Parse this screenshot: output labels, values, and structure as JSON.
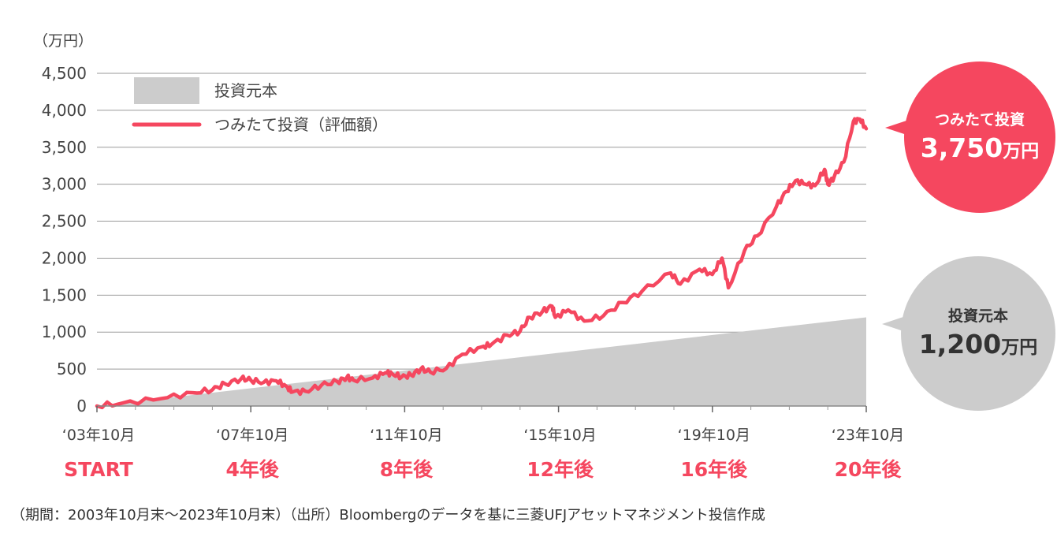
{
  "chart_data": {
    "type": "area",
    "y_unit": "（万円）",
    "ylim": [
      0,
      4500
    ],
    "y_ticks": [
      "4,500",
      "4,000",
      "3,500",
      "3,000",
      "2,500",
      "2,000",
      "1,500",
      "1,000",
      "500",
      "0"
    ],
    "x_ticks": [
      {
        "date": "‘03年10月",
        "elapsed": "START"
      },
      {
        "date": "‘07年10月",
        "elapsed": "4年後"
      },
      {
        "date": "‘11年10月",
        "elapsed": "8年後"
      },
      {
        "date": "‘15年10月",
        "elapsed": "12年後"
      },
      {
        "date": "‘19年10月",
        "elapsed": "16年後"
      },
      {
        "date": "‘23年10月",
        "elapsed": "20年後"
      }
    ],
    "grid": true,
    "legend": [
      {
        "label": "投資元本",
        "color": "#cccccc"
      },
      {
        "label": "つみたて投資（評価額）",
        "color": "#f5475f"
      }
    ],
    "legend_position": "top-left",
    "series": [
      {
        "name": "投資元本",
        "style": "area",
        "color": "#cccccc",
        "points": [
          [
            "2003-10",
            0
          ],
          [
            "2023-10",
            1200
          ]
        ]
      },
      {
        "name": "つみたて投資（評価額）",
        "style": "line",
        "color": "#f5475f",
        "points": [
          [
            "2003-10",
            0
          ],
          [
            "2004-06",
            40
          ],
          [
            "2005-06",
            100
          ],
          [
            "2006-04",
            180
          ],
          [
            "2006-10",
            220
          ],
          [
            "2007-02",
            300
          ],
          [
            "2007-07",
            370
          ],
          [
            "2007-10",
            350
          ],
          [
            "2008-02",
            320
          ],
          [
            "2008-06",
            340
          ],
          [
            "2008-09",
            270
          ],
          [
            "2008-11",
            190
          ],
          [
            "2009-03",
            200
          ],
          [
            "2009-08",
            280
          ],
          [
            "2010-01",
            330
          ],
          [
            "2010-04",
            390
          ],
          [
            "2010-06",
            350
          ],
          [
            "2010-12",
            380
          ],
          [
            "2011-04",
            450
          ],
          [
            "2011-06",
            440
          ],
          [
            "2011-09",
            390
          ],
          [
            "2011-12",
            420
          ],
          [
            "2012-03",
            500
          ],
          [
            "2012-06",
            460
          ],
          [
            "2012-11",
            510
          ],
          [
            "2013-04",
            700
          ],
          [
            "2013-10",
            800
          ],
          [
            "2014-01",
            830
          ],
          [
            "2014-06",
            960
          ],
          [
            "2014-10",
            1010
          ],
          [
            "2015-01",
            1200
          ],
          [
            "2015-05",
            1280
          ],
          [
            "2015-08",
            1350
          ],
          [
            "2015-09",
            1200
          ],
          [
            "2016-01",
            1300
          ],
          [
            "2016-06",
            1150
          ],
          [
            "2016-12",
            1220
          ],
          [
            "2017-06",
            1400
          ],
          [
            "2017-12",
            1550
          ],
          [
            "2018-09",
            1800
          ],
          [
            "2018-12",
            1650
          ],
          [
            "2019-06",
            1850
          ],
          [
            "2019-10",
            1780
          ],
          [
            "2020-01",
            2000
          ],
          [
            "2020-03",
            1600
          ],
          [
            "2020-08",
            2100
          ],
          [
            "2020-12",
            2300
          ],
          [
            "2021-06",
            2700
          ],
          [
            "2021-09",
            2900
          ],
          [
            "2021-12",
            3050
          ],
          [
            "2022-03",
            3000
          ],
          [
            "2022-06",
            2980
          ],
          [
            "2022-09",
            3200
          ],
          [
            "2022-10",
            3000
          ],
          [
            "2022-12",
            3100
          ],
          [
            "2023-03",
            3300
          ],
          [
            "2023-06",
            3850
          ],
          [
            "2023-08",
            3880
          ],
          [
            "2023-10",
            3750
          ]
        ]
      }
    ]
  },
  "callouts": {
    "tsumitate": {
      "label": "つみたて投資",
      "value": "3,750",
      "unit": "万円"
    },
    "principal": {
      "label": "投資元本",
      "value": "1,200",
      "unit": "万円"
    }
  },
  "source_note": "（期間：2003年10月末～2023年10月末）（出所）Bloombergのデータを基に三菱UFJアセットマネジメント投信作成"
}
